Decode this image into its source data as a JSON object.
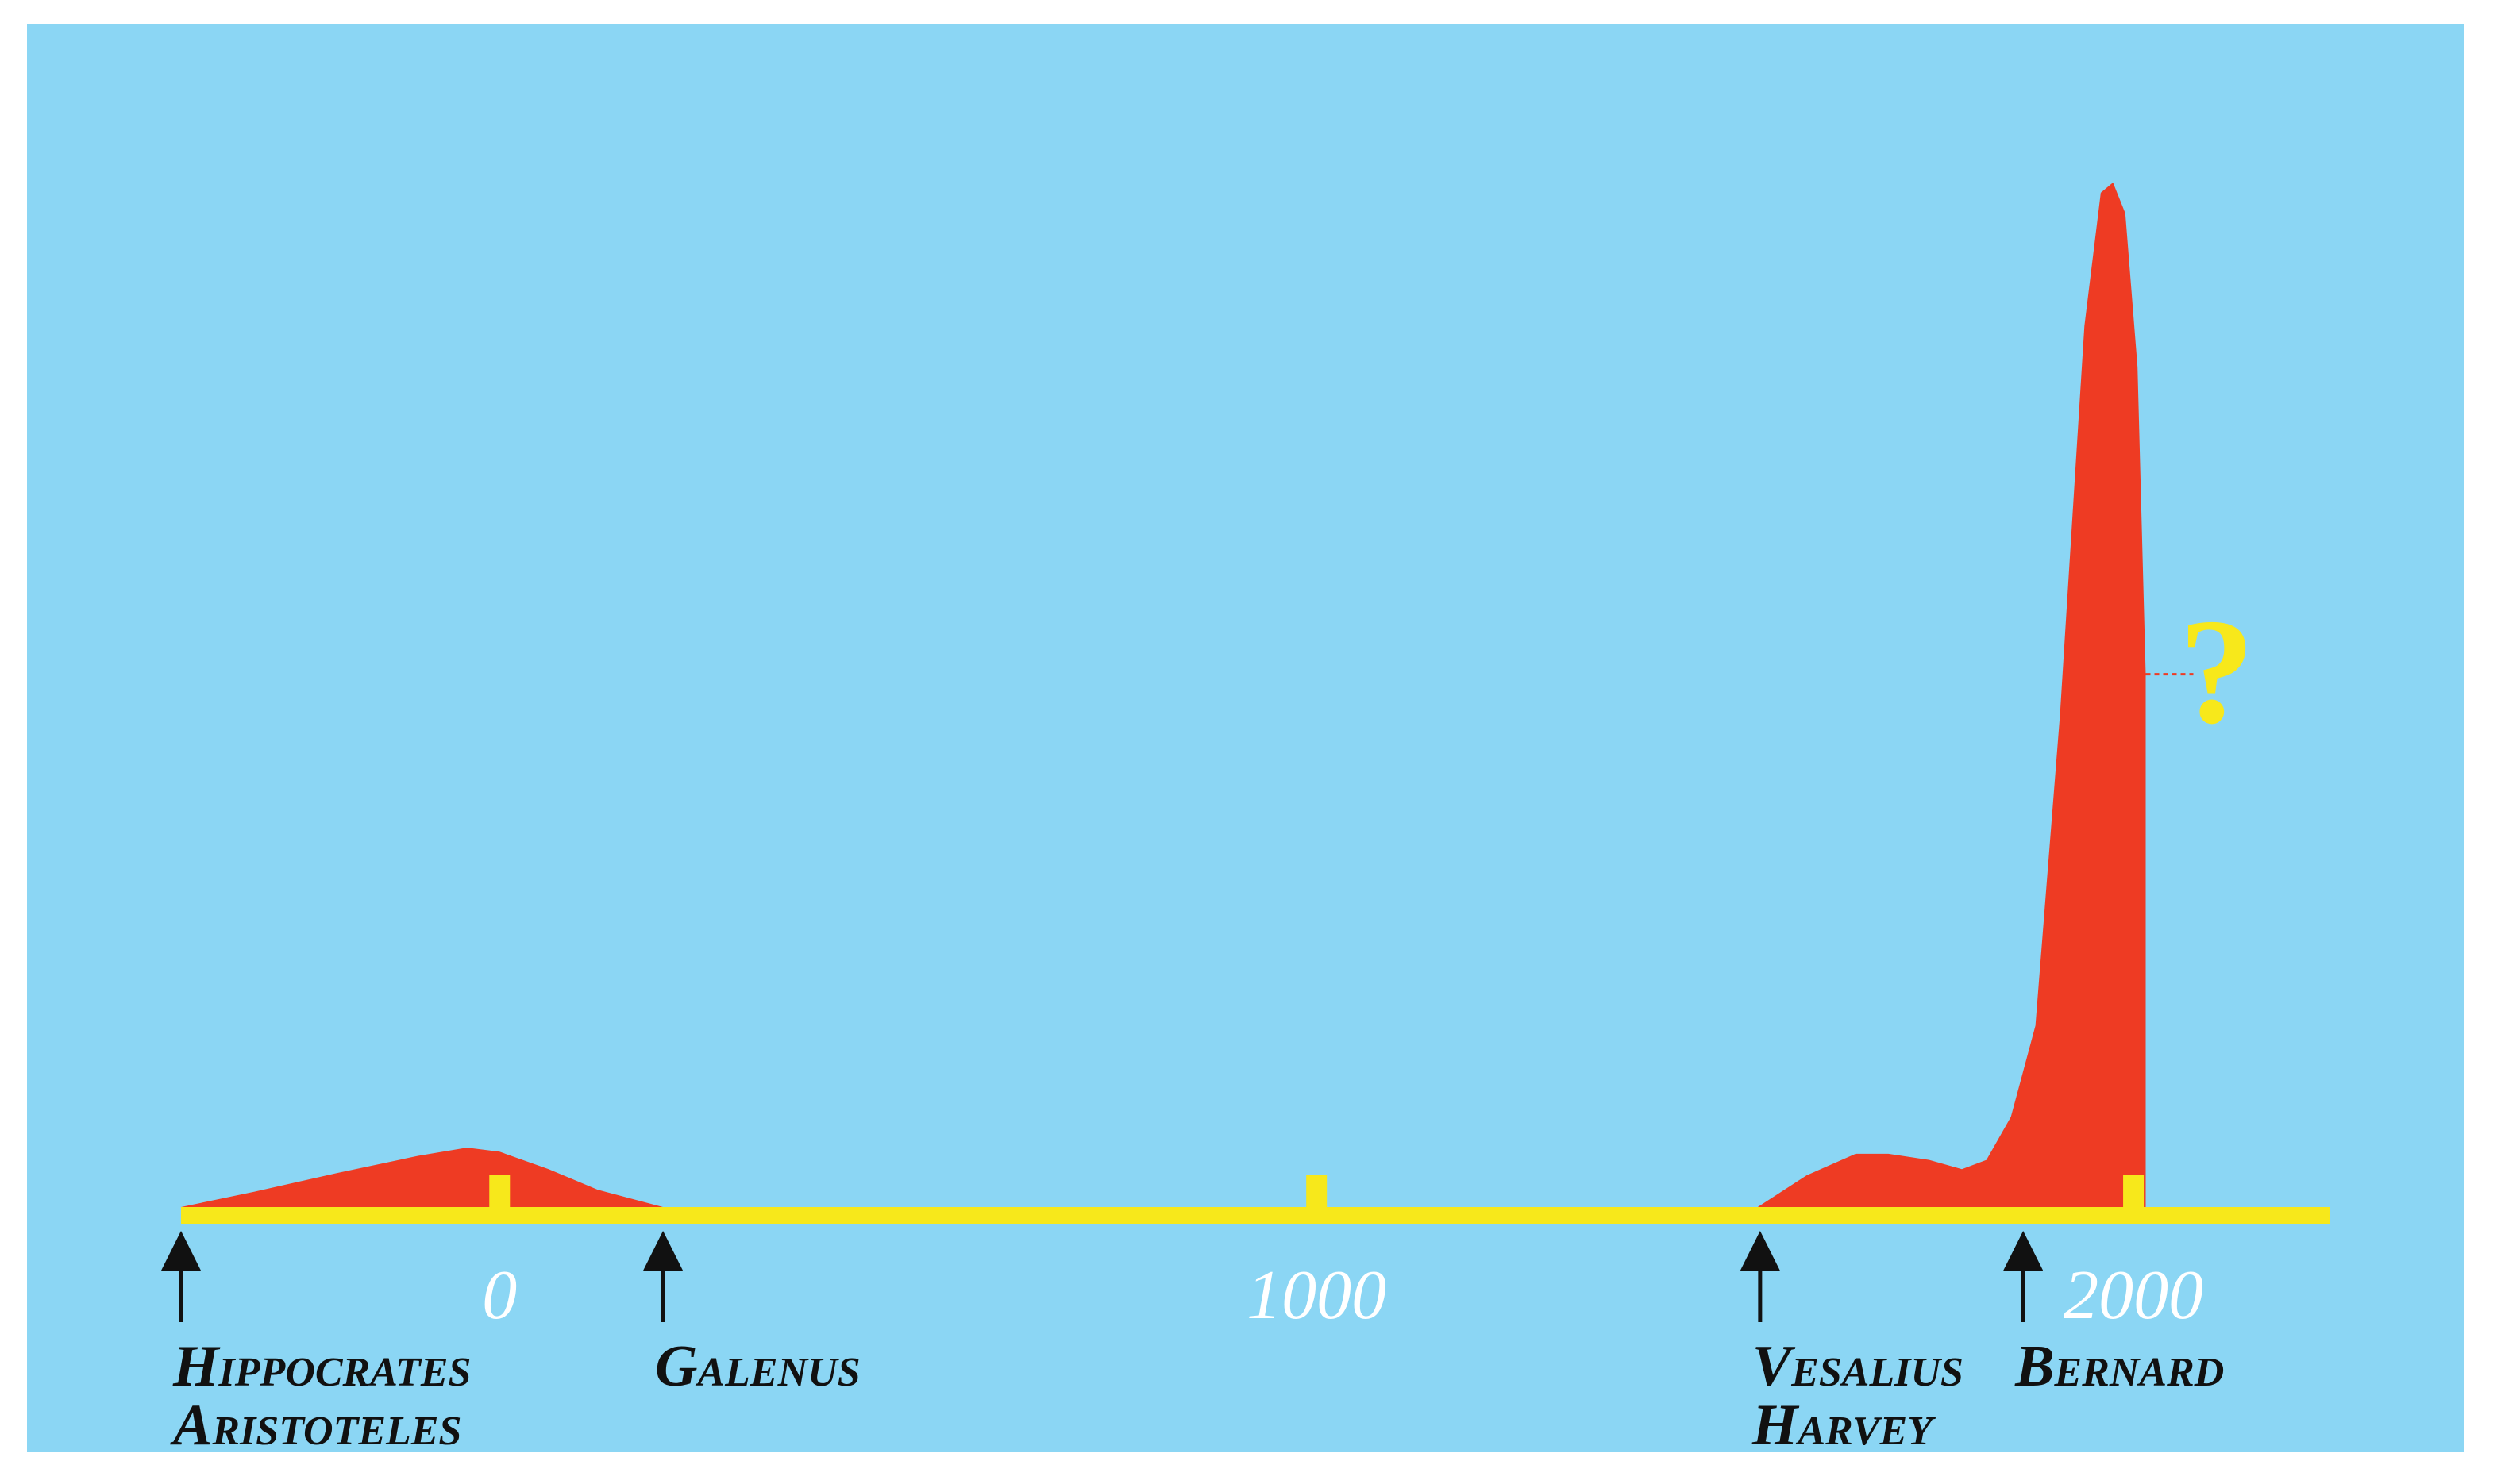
{
  "chart_data": {
    "type": "area",
    "x_axis": {
      "xlim": [
        -390,
        2240
      ],
      "ticks": [
        0,
        1000,
        2000
      ],
      "tick_labels": [
        "0",
        "1000",
        "2000"
      ]
    },
    "y_axis": {
      "ylim": [
        0,
        100
      ],
      "visible": false
    },
    "grid": false,
    "legend": "none",
    "series": [
      {
        "values": [
          {
            "x": -390,
            "y": 0
          },
          {
            "x": -300,
            "y": 1.5
          },
          {
            "x": -200,
            "y": 3.3
          },
          {
            "x": -100,
            "y": 5
          },
          {
            "x": -40,
            "y": 5.8
          },
          {
            "x": 0,
            "y": 5.4
          },
          {
            "x": 60,
            "y": 3.7
          },
          {
            "x": 120,
            "y": 1.7
          },
          {
            "x": 200,
            "y": 0
          }
        ]
      },
      {
        "values": [
          {
            "x": 1540,
            "y": 0
          },
          {
            "x": 1600,
            "y": 3.1
          },
          {
            "x": 1660,
            "y": 5.2
          },
          {
            "x": 1700,
            "y": 5.2
          },
          {
            "x": 1750,
            "y": 4.6
          },
          {
            "x": 1790,
            "y": 3.7
          },
          {
            "x": 1820,
            "y": 4.6
          },
          {
            "x": 1850,
            "y": 8.8
          },
          {
            "x": 1880,
            "y": 17.7
          },
          {
            "x": 1910,
            "y": 48
          },
          {
            "x": 1940,
            "y": 86
          },
          {
            "x": 1960,
            "y": 99
          },
          {
            "x": 1975,
            "y": 100
          },
          {
            "x": 1990,
            "y": 97
          },
          {
            "x": 2005,
            "y": 82
          },
          {
            "x": 2015,
            "y": 52
          },
          {
            "x": 2015,
            "y": 0
          }
        ]
      }
    ],
    "annotations": [
      {
        "lines": [
          "Hippocrates",
          "Aristoteles"
        ],
        "x": -390
      },
      {
        "lines": [
          "Galenus"
        ],
        "x": 200
      },
      {
        "lines": [
          "Vesalius",
          "Harvey"
        ],
        "x": 1543
      },
      {
        "lines": [
          "Bernard"
        ],
        "x": 1865
      },
      {
        "text": "?",
        "x": 2015,
        "y": 52
      }
    ],
    "colors": {
      "background": "#8bd6f4",
      "area": "#ee3b23",
      "axis": "#f7e81b",
      "tick_label": "#ffffff",
      "annotation": "#111111",
      "question_mark": "#f7e81b"
    }
  }
}
